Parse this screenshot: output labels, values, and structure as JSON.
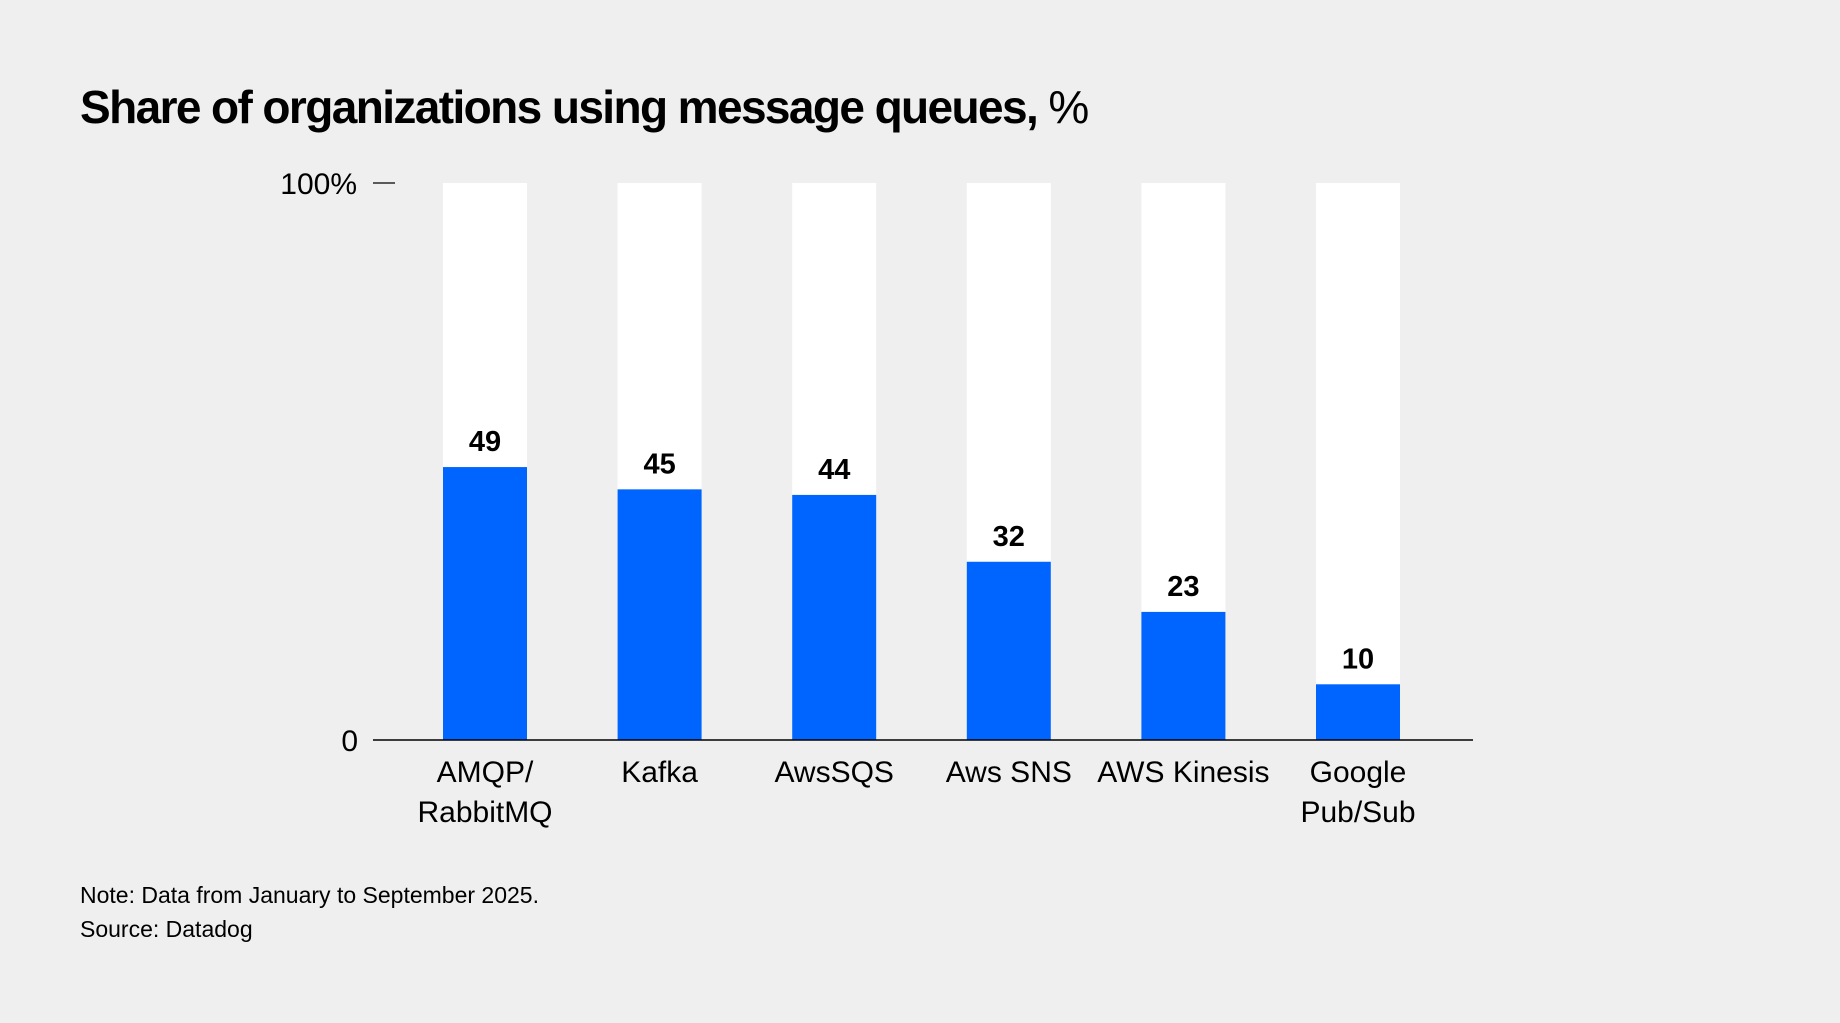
{
  "chart_data": {
    "type": "bar",
    "title": "Share of organizations using message queues,",
    "title_unit": "%",
    "categories": [
      [
        "AMQP/",
        "RabbitMQ"
      ],
      [
        "Kafka"
      ],
      [
        "AwsSQS"
      ],
      [
        "Aws SNS"
      ],
      [
        "AWS Kinesis"
      ],
      [
        "Google",
        "Pub/Sub"
      ]
    ],
    "values": [
      49,
      45,
      44,
      32,
      23,
      10
    ],
    "ylim": [
      0,
      100
    ],
    "yticks": [
      {
        "value": 0,
        "label": "0"
      },
      {
        "value": 100,
        "label": "100%"
      }
    ],
    "grid": false,
    "bar_color": "#0064ff",
    "track_color": "#ffffff",
    "background": "#efefef"
  },
  "notes": {
    "note": "Note: Data from January to September 2025.",
    "source": "Source: Datadog"
  }
}
